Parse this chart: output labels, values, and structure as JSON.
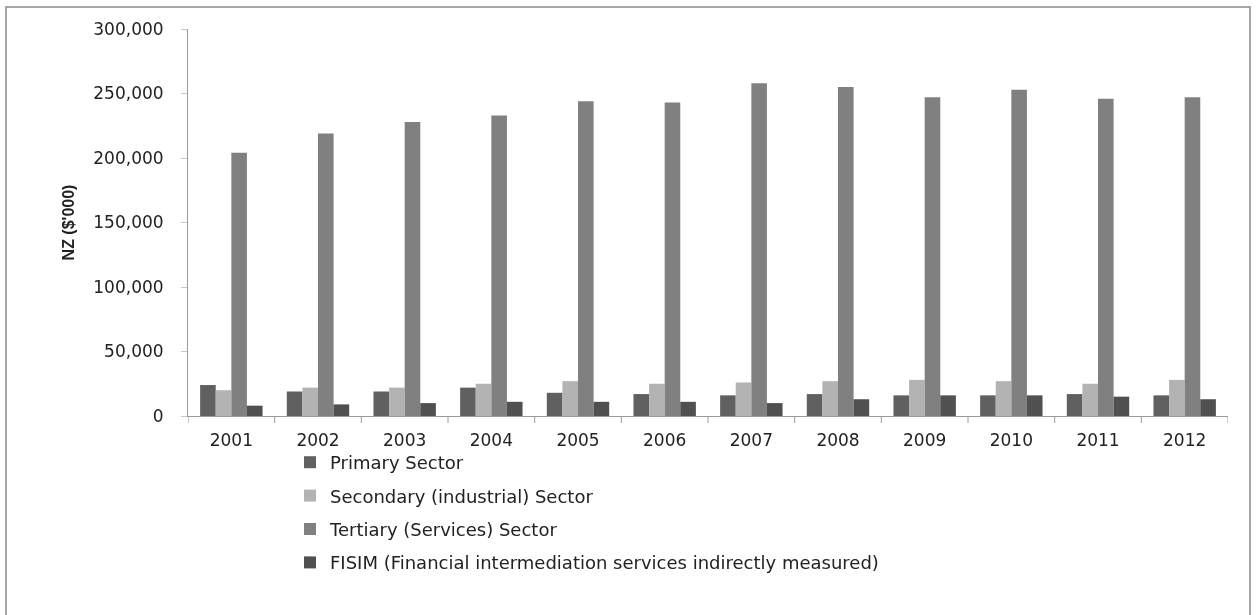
{
  "chart_data": {
    "type": "bar",
    "ylabel": "NZ ($'000)",
    "categories": [
      "2001",
      "2002",
      "2003",
      "2004",
      "2005",
      "2006",
      "2007",
      "2008",
      "2009",
      "2010",
      "2011",
      "2012"
    ],
    "series": [
      {
        "name": "Primary Sector",
        "color": "#606060",
        "values": [
          24000,
          19000,
          19000,
          22000,
          18000,
          17000,
          16000,
          17000,
          16000,
          16000,
          17000,
          16000
        ]
      },
      {
        "name": "Secondary (industrial) Sector",
        "color": "#b3b3b3",
        "values": [
          20000,
          22000,
          22000,
          25000,
          27000,
          25000,
          26000,
          27000,
          28000,
          27000,
          25000,
          28000
        ]
      },
      {
        "name": "Tertiary (Services) Sector",
        "color": "#808080",
        "values": [
          204000,
          219000,
          228000,
          233000,
          244000,
          243000,
          258000,
          255000,
          247000,
          253000,
          246000,
          247000
        ]
      },
      {
        "name": "FISIM (Financial intermediation services indirectly measured)",
        "color": "#505050",
        "values": [
          8000,
          9000,
          10000,
          11000,
          11000,
          11000,
          10000,
          13000,
          16000,
          16000,
          15000,
          13000
        ]
      }
    ],
    "ylim": [
      0,
      300000
    ],
    "yticks": [
      {
        "value": 0,
        "label": "0"
      },
      {
        "value": 50000,
        "label": "50,000"
      },
      {
        "value": 100000,
        "label": "100,000"
      },
      {
        "value": 150000,
        "label": "150,000"
      },
      {
        "value": 200000,
        "label": "200,000"
      },
      {
        "value": 250000,
        "label": "250,000"
      },
      {
        "value": 300000,
        "label": "300,000"
      }
    ],
    "legend": "bottom"
  }
}
